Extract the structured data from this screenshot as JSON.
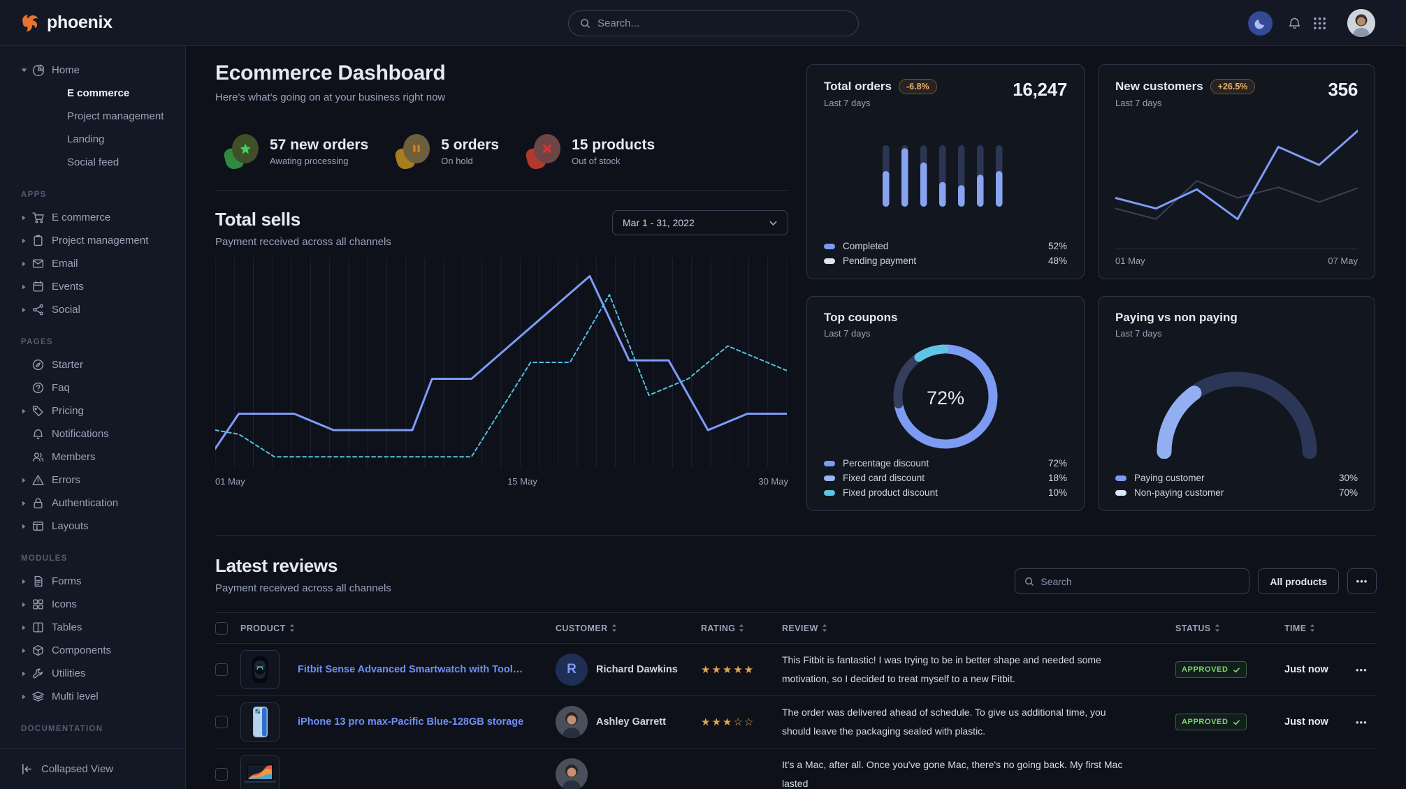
{
  "nav": {
    "brand": "phoenix",
    "search_placeholder": "Search...",
    "right_icons": [
      "moon-icon",
      "bell-icon",
      "apps-grid-icon",
      "avatar"
    ]
  },
  "sidebar": {
    "home_group": {
      "label": "Home",
      "icon": "pie-chart-icon",
      "expanded": true,
      "children": [
        {
          "label": "E commerce",
          "active": true
        },
        {
          "label": "Project management",
          "active": false
        },
        {
          "label": "Landing",
          "active": false
        },
        {
          "label": "Social feed",
          "active": false
        }
      ]
    },
    "sections": [
      {
        "title": "APPS",
        "items": [
          {
            "label": "E commerce",
            "icon": "cart-icon",
            "caret": true
          },
          {
            "label": "Project management",
            "icon": "clipboard-icon",
            "caret": true
          },
          {
            "label": "Email",
            "icon": "envelope-icon",
            "caret": true
          },
          {
            "label": "Events",
            "icon": "calendar-icon",
            "caret": true
          },
          {
            "label": "Social",
            "icon": "share-icon",
            "caret": true
          }
        ]
      },
      {
        "title": "PAGES",
        "items": [
          {
            "label": "Starter",
            "icon": "compass-icon",
            "caret": false
          },
          {
            "label": "Faq",
            "icon": "question-circle-icon",
            "caret": false
          },
          {
            "label": "Pricing",
            "icon": "tag-icon",
            "caret": true
          },
          {
            "label": "Notifications",
            "icon": "bell-icon",
            "caret": false
          },
          {
            "label": "Members",
            "icon": "users-icon",
            "caret": false
          },
          {
            "label": "Errors",
            "icon": "warning-triangle-icon",
            "caret": true
          },
          {
            "label": "Authentication",
            "icon": "lock-icon",
            "caret": true
          },
          {
            "label": "Layouts",
            "icon": "layout-icon",
            "caret": true
          }
        ]
      },
      {
        "title": "MODULES",
        "items": [
          {
            "label": "Forms",
            "icon": "file-text-icon",
            "caret": true
          },
          {
            "label": "Icons",
            "icon": "grid-icon",
            "caret": true
          },
          {
            "label": "Tables",
            "icon": "columns-icon",
            "caret": true
          },
          {
            "label": "Components",
            "icon": "package-icon",
            "caret": true
          },
          {
            "label": "Utilities",
            "icon": "wrench-icon",
            "caret": true
          },
          {
            "label": "Multi level",
            "icon": "layers-icon",
            "caret": true
          }
        ]
      },
      {
        "title": "DOCUMENTATION",
        "items": []
      }
    ],
    "footer": {
      "label": "Collapsed View",
      "icon": "collapse-left-icon"
    }
  },
  "page_header": {
    "title": "Ecommerce Dashboard",
    "subtitle": "Here's what's going on at your business right now"
  },
  "stats": [
    {
      "value_label": "57 new orders",
      "sublabel": "Awating processing",
      "icon": "star-icon",
      "glyph_color": "#3cd458",
      "face_color": "#3f4f28",
      "blob_color": "#2f8a3e"
    },
    {
      "value_label": "5 orders",
      "sublabel": "On hold",
      "icon": "pause-icon",
      "glyph_color": "#e5780b",
      "face_color": "#6b5f3c",
      "blob_color": "#a97c1e"
    },
    {
      "value_label": "15 products",
      "sublabel": "Out of stock",
      "icon": "x-icon",
      "glyph_color": "#e03131",
      "face_color": "#6d4545",
      "blob_color": "#b03a2c"
    }
  ],
  "total_sells": {
    "title": "Total sells",
    "subtitle": "Payment received across all channels",
    "date_range": "Mar 1 - 31, 2022",
    "x_labels": [
      "01 May",
      "15 May",
      "30 May"
    ]
  },
  "cards": {
    "total_orders": {
      "title": "Total orders",
      "badge": "-6.8%",
      "period": "Last 7 days",
      "value": "16,247",
      "legend": [
        {
          "label": "Completed",
          "value": "52%",
          "color": "#7d9bf3"
        },
        {
          "label": "Pending payment",
          "value": "48%",
          "color": "#dde6f7"
        }
      ]
    },
    "new_customers": {
      "title": "New customers",
      "badge": "+26.5%",
      "period": "Last 7 days",
      "value": "356",
      "x_labels": [
        "01 May",
        "07 May"
      ]
    },
    "top_coupons": {
      "title": "Top coupons",
      "period": "Last 7 days",
      "center_value": "72%",
      "legend": [
        {
          "label": "Percentage discount",
          "value": "72%",
          "color": "#7d9bf3"
        },
        {
          "label": "Fixed card discount",
          "value": "18%",
          "color": "#9db4f2"
        },
        {
          "label": "Fixed product discount",
          "value": "10%",
          "color": "#5ec5e6"
        }
      ]
    },
    "paying": {
      "title": "Paying vs non paying",
      "period": "Last 7 days",
      "legend": [
        {
          "label": "Paying customer",
          "value": "30%",
          "color": "#7d9bf3"
        },
        {
          "label": "Non-paying customer",
          "value": "70%",
          "color": "#dde6f7"
        }
      ]
    }
  },
  "chart_data": [
    {
      "id": "total-sells",
      "type": "line",
      "x_range_days": [
        1,
        30
      ],
      "ylim": [
        0,
        100
      ],
      "grid": "vertical",
      "series": [
        {
          "name": "current",
          "style": "solid",
          "color": "#7e9cf7",
          "points": [
            [
              1,
              8
            ],
            [
              2.2,
              25
            ],
            [
              5,
              25
            ],
            [
              7,
              17
            ],
            [
              11,
              17
            ],
            [
              12,
              42
            ],
            [
              14,
              42
            ],
            [
              20,
              92
            ],
            [
              22,
              51
            ],
            [
              24,
              51
            ],
            [
              26,
              17
            ],
            [
              28,
              25
            ],
            [
              30,
              25
            ]
          ]
        },
        {
          "name": "previous",
          "style": "dashed",
          "color": "#56c0e0",
          "points": [
            [
              1,
              17
            ],
            [
              2.2,
              15
            ],
            [
              4,
              4
            ],
            [
              14,
              4
            ],
            [
              17,
              50
            ],
            [
              19,
              50
            ],
            [
              21,
              83
            ],
            [
              23,
              34
            ],
            [
              25,
              42
            ],
            [
              27,
              58
            ],
            [
              30,
              46
            ]
          ]
        }
      ]
    },
    {
      "id": "total-orders-bars",
      "type": "bar",
      "stacked": true,
      "series": [
        {
          "name": "Completed",
          "color": "#88a4f0",
          "values": [
            58,
            95,
            72,
            40,
            35,
            52,
            58
          ]
        },
        {
          "name": "Pending payment",
          "color": "#2c3553",
          "values": [
            42,
            5,
            28,
            60,
            65,
            48,
            42
          ]
        }
      ]
    },
    {
      "id": "new-customers-line",
      "type": "line",
      "x_labels": [
        "01 May",
        "07 May"
      ],
      "series": [
        {
          "name": "current",
          "color": "#7e9cf7",
          "values": [
            32,
            22,
            40,
            12,
            80,
            63,
            97
          ]
        },
        {
          "name": "previous",
          "color": "#3a4257",
          "values": [
            22,
            12,
            48,
            32,
            42,
            28,
            42
          ]
        }
      ]
    },
    {
      "id": "top-coupons-donut",
      "type": "pie",
      "center_label": "72%",
      "slices": [
        {
          "label": "Percentage discount",
          "value": 72,
          "color": "#7d9bf3"
        },
        {
          "label": "Fixed card discount",
          "value": 18,
          "color": "#353e5c"
        },
        {
          "label": "Fixed product discount",
          "value": 10,
          "color": "#5ec5e6"
        }
      ]
    },
    {
      "id": "paying-gauge",
      "type": "gauge",
      "slices": [
        {
          "label": "Paying customer",
          "value": 30,
          "color": "#92aff2"
        },
        {
          "label": "Non-paying customer",
          "value": 70,
          "color": "#2c3757"
        }
      ]
    }
  ],
  "reviews": {
    "title": "Latest reviews",
    "subtitle": "Payment received across all channels",
    "search_placeholder": "Search",
    "filter_button": "All products",
    "columns": [
      "PRODUCT",
      "CUSTOMER",
      "RATING",
      "REVIEW",
      "STATUS",
      "TIME"
    ],
    "rows": [
      {
        "product": "Fitbit Sense Advanced Smartwatch with Tools fo...",
        "thumb": "smartwatch",
        "customer": "Richard Dawkins",
        "avatar_type": "initial",
        "avatar_text": "R",
        "rating": 5,
        "review": "This Fitbit is fantastic! I was trying to be in better shape and needed some motivation, so I decided to treat myself to a new Fitbit.",
        "status": "APPROVED",
        "time": "Just now"
      },
      {
        "product": "iPhone 13 pro max-Pacific Blue-128GB storage",
        "thumb": "phone",
        "customer": "Ashley Garrett",
        "avatar_type": "photo",
        "avatar_text": "",
        "rating": 3,
        "review": "The order was delivered ahead of schedule. To give us additional time, you should leave the packaging sealed with plastic.",
        "status": "APPROVED",
        "time": "Just now"
      },
      {
        "product": "",
        "thumb": "laptop",
        "customer": "",
        "avatar_type": "photo",
        "avatar_text": "",
        "rating": 0,
        "review": "It's a Mac, after all. Once you've gone Mac, there's no going back. My first Mac lasted",
        "status": "",
        "time": ""
      }
    ]
  }
}
